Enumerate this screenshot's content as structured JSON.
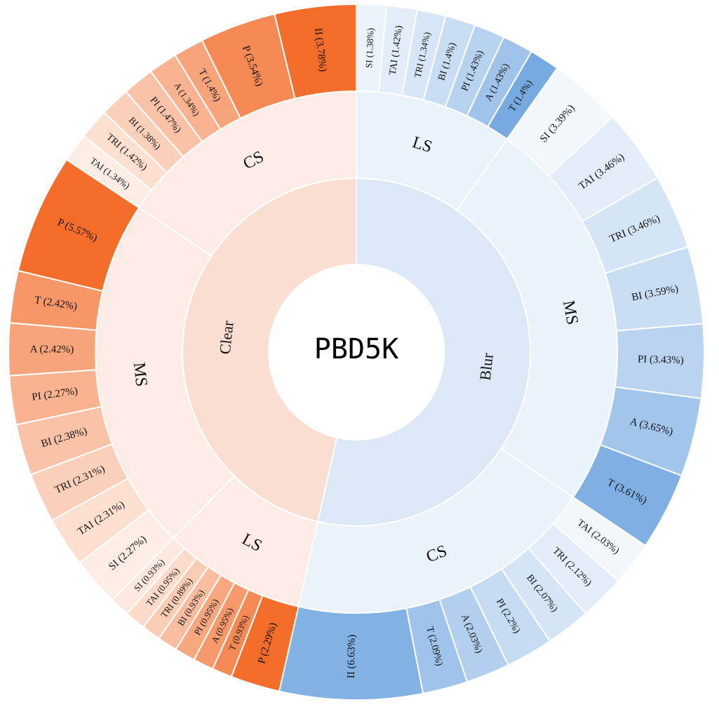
{
  "chart_data": {
    "type": "sunburst",
    "title": "PBD5K",
    "colors": {
      "clear_base": "#fbded2",
      "clear_mid": "#fdece5",
      "clear_accent": "#f46d2a",
      "blur_base": "#dce8f5",
      "blur_mid": "#eaf2fa",
      "blur_accent": "#5f9bdc"
    },
    "rings": [
      {
        "name": "Clear",
        "family": "clear",
        "children": [
          {
            "name": "LS",
            "children": [
              {
                "label": "P (2.29%)",
                "value": 2.29,
                "intensity": 1.0
              },
              {
                "label": "T (0.93%)",
                "value": 0.93,
                "intensity": 0.8
              },
              {
                "label": "A (0.95%)",
                "value": 0.95,
                "intensity": 0.7
              },
              {
                "label": "PI (0.95%)",
                "value": 0.95,
                "intensity": 0.6
              },
              {
                "label": "BI (0.93%)",
                "value": 0.93,
                "intensity": 0.45
              },
              {
                "label": "TRI (0.89%)",
                "value": 0.89,
                "intensity": 0.35
              },
              {
                "label": "TAI (0.95%)",
                "value": 0.95,
                "intensity": 0.25
              },
              {
                "label": "SI (0.93%)",
                "value": 0.93,
                "intensity": 0.15
              }
            ]
          },
          {
            "name": "MS",
            "children": [
              {
                "label": "SI (2.27%)",
                "value": 2.27,
                "intensity": 0.12
              },
              {
                "label": "TAI (2.31%)",
                "value": 2.31,
                "intensity": 0.22
              },
              {
                "label": "TRI (2.31%)",
                "value": 2.31,
                "intensity": 0.32
              },
              {
                "label": "BI (2.38%)",
                "value": 2.38,
                "intensity": 0.42
              },
              {
                "label": "PI (2.27%)",
                "value": 2.27,
                "intensity": 0.52
              },
              {
                "label": "A (2.42%)",
                "value": 2.42,
                "intensity": 0.62
              },
              {
                "label": "T (2.42%)",
                "value": 2.42,
                "intensity": 0.72
              },
              {
                "label": "P (5.57%)",
                "value": 5.57,
                "intensity": 1.0
              }
            ]
          },
          {
            "name": "CS",
            "children": [
              {
                "label": "TAI (1.34%)",
                "value": 1.34,
                "intensity": 0.12
              },
              {
                "label": "TRI (1.42%)",
                "value": 1.42,
                "intensity": 0.22
              },
              {
                "label": "BI (1.38%)",
                "value": 1.38,
                "intensity": 0.32
              },
              {
                "label": "PI (1.47%)",
                "value": 1.47,
                "intensity": 0.42
              },
              {
                "label": "A (1.34%)",
                "value": 1.34,
                "intensity": 0.52
              },
              {
                "label": "T (1.4%)",
                "value": 1.4,
                "intensity": 0.62
              },
              {
                "label": "P (3.54%)",
                "value": 3.54,
                "intensity": 0.8
              },
              {
                "label": "II (3.78%)",
                "value": 3.78,
                "intensity": 1.0
              }
            ]
          }
        ]
      },
      {
        "name": "Blur",
        "family": "blur",
        "children": [
          {
            "name": "LS",
            "children": [
              {
                "label": "SI (1.38%)",
                "value": 1.38,
                "intensity": 0.12
              },
              {
                "label": "TAI (1.42%)",
                "value": 1.42,
                "intensity": 0.18
              },
              {
                "label": "TRI (1.34%)",
                "value": 1.34,
                "intensity": 0.25
              },
              {
                "label": "BI (1.4%)",
                "value": 1.4,
                "intensity": 0.33
              },
              {
                "label": "PI (1.43%)",
                "value": 1.43,
                "intensity": 0.45
              },
              {
                "label": "A (1.43%)",
                "value": 1.43,
                "intensity": 0.6
              },
              {
                "label": "T (1.4%)",
                "value": 1.4,
                "intensity": 0.85
              }
            ]
          },
          {
            "name": "MS",
            "children": [
              {
                "label": "SI (3.39%)",
                "value": 3.39,
                "intensity": 0.08
              },
              {
                "label": "TAI (3.46%)",
                "value": 3.46,
                "intensity": 0.18
              },
              {
                "label": "TRI (3.46%)",
                "value": 3.46,
                "intensity": 0.26
              },
              {
                "label": "BI (3.59%)",
                "value": 3.59,
                "intensity": 0.34
              },
              {
                "label": "PI (3.43%)",
                "value": 3.43,
                "intensity": 0.44
              },
              {
                "label": "A (3.65%)",
                "value": 3.65,
                "intensity": 0.58
              },
              {
                "label": "T (3.61%)",
                "value": 3.61,
                "intensity": 0.8
              }
            ]
          },
          {
            "name": "CS",
            "children": [
              {
                "label": "TAI (2.03%)",
                "value": 2.03,
                "intensity": 0.08
              },
              {
                "label": "TRI (2.12%)",
                "value": 2.12,
                "intensity": 0.18
              },
              {
                "label": "BI (2.07%)",
                "value": 2.07,
                "intensity": 0.26
              },
              {
                "label": "PI (2.2%)",
                "value": 2.2,
                "intensity": 0.36
              },
              {
                "label": "A (2.03%)",
                "value": 2.03,
                "intensity": 0.48
              },
              {
                "label": "T (2.09%)",
                "value": 2.09,
                "intensity": 0.6
              },
              {
                "label": "II (6.63%)",
                "value": 6.63,
                "intensity": 0.78
              }
            ]
          }
        ]
      }
    ]
  }
}
